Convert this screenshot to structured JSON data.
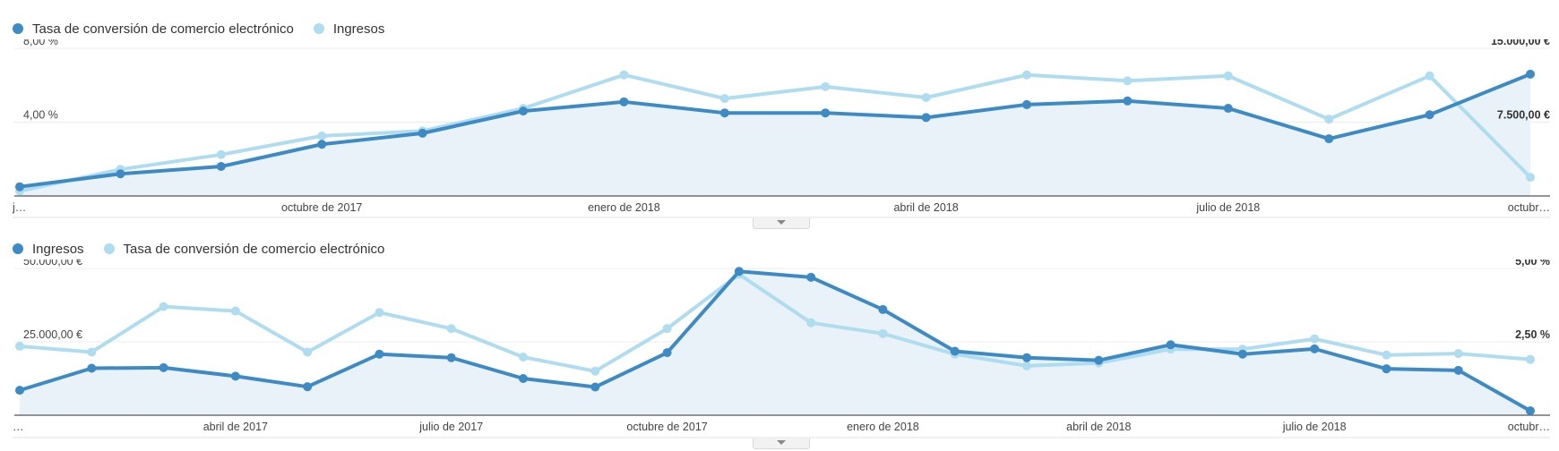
{
  "colors": {
    "primary": "#3d8ac4",
    "secondary": "#afdcef",
    "fill": "#e9f2f9",
    "grid": "#ececec",
    "baseline": "#555555"
  },
  "chart_data": [
    {
      "type": "line",
      "legend": "top-left",
      "grid": true,
      "x": [
        "j…",
        "",
        "",
        "octubre de 2017",
        "",
        "",
        "enero de 2018",
        "",
        "",
        "abril de 2018",
        "",
        "",
        "julio de 2018",
        "",
        "",
        "octubr…"
      ],
      "series": [
        {
          "name": "Tasa de conversión de comercio electrónico",
          "axis": "left",
          "values": [
            0.5,
            1.2,
            1.6,
            2.8,
            3.4,
            4.6,
            5.1,
            4.5,
            4.5,
            4.25,
            4.95,
            5.15,
            4.75,
            3.1,
            4.4,
            6.6
          ]
        },
        {
          "name": "Ingresos",
          "axis": "right",
          "values": [
            500,
            2700,
            4200,
            6100,
            6600,
            8900,
            12300,
            9900,
            11100,
            10000,
            12300,
            11700,
            12200,
            7800,
            12200,
            1900
          ]
        }
      ],
      "left_axis": {
        "ticks": [
          "8,00 %",
          "4,00 %"
        ],
        "ylim": [
          0,
          8
        ]
      },
      "right_axis": {
        "ticks": [
          "15.000,00 €",
          "7.500,00 €"
        ],
        "ylim": [
          0,
          15000
        ]
      }
    },
    {
      "type": "line",
      "legend": "top-left",
      "grid": true,
      "x": [
        "…",
        "",
        "",
        "abril de 2017",
        "",
        "",
        "julio de 2017",
        "",
        "",
        "octubre de 2017",
        "",
        "",
        "enero de 2018",
        "",
        "",
        "abril de 2018",
        "",
        "",
        "julio de 2018",
        "",
        "",
        "octubr…"
      ],
      "series": [
        {
          "name": "Ingresos",
          "axis": "left",
          "values": [
            8500,
            16000,
            16200,
            13300,
            9700,
            20800,
            19600,
            12500,
            9600,
            21300,
            49000,
            47000,
            36000,
            21800,
            19600,
            18700,
            24000,
            20800,
            22600,
            15800,
            15300,
            1500
          ]
        },
        {
          "name": "Tasa de conversión de comercio electrónico",
          "axis": "right",
          "values": [
            2.35,
            2.15,
            3.7,
            3.55,
            2.15,
            3.5,
            2.95,
            1.98,
            1.5,
            2.95,
            4.8,
            3.15,
            2.78,
            2.08,
            1.68,
            1.78,
            2.25,
            2.25,
            2.6,
            2.05,
            2.1,
            1.9
          ]
        }
      ],
      "left_axis": {
        "ticks": [
          "50.000,00 €",
          "25.000,00 €"
        ],
        "ylim": [
          0,
          50000
        ]
      },
      "right_axis": {
        "ticks": [
          "5,00 %",
          "2,50 %"
        ],
        "ylim": [
          0,
          5
        ]
      }
    }
  ]
}
